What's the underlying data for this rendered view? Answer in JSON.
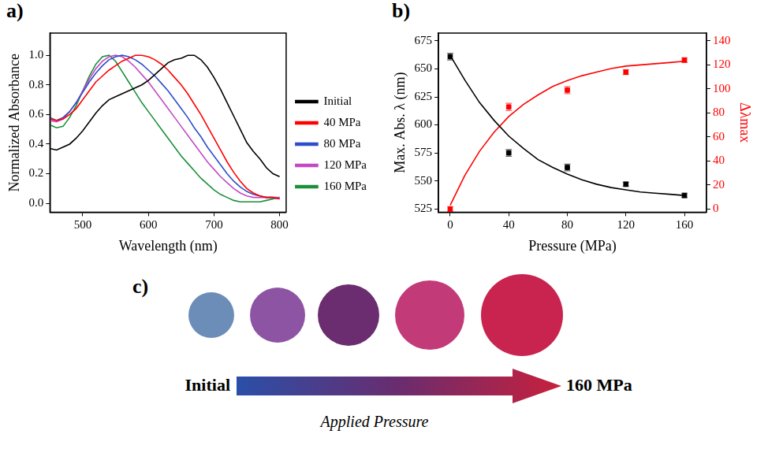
{
  "chart_data": [
    {
      "panel": "a)",
      "type": "line",
      "x_label": "Wavelength (nm)",
      "y_label": "Normalized Absorbance",
      "x": [
        450,
        460,
        470,
        480,
        490,
        500,
        510,
        520,
        530,
        540,
        550,
        560,
        570,
        580,
        590,
        600,
        610,
        620,
        630,
        640,
        650,
        660,
        670,
        680,
        690,
        700,
        710,
        720,
        730,
        740,
        750,
        760,
        770,
        780,
        790,
        800
      ],
      "series": [
        {
          "name": "Initial",
          "color": "#000000",
          "values": [
            0.37,
            0.36,
            0.38,
            0.4,
            0.44,
            0.49,
            0.55,
            0.61,
            0.66,
            0.7,
            0.72,
            0.74,
            0.76,
            0.78,
            0.8,
            0.83,
            0.87,
            0.91,
            0.95,
            0.97,
            0.98,
            1.0,
            1.0,
            0.97,
            0.92,
            0.85,
            0.77,
            0.68,
            0.59,
            0.5,
            0.41,
            0.35,
            0.3,
            0.24,
            0.2,
            0.18
          ]
        },
        {
          "name": "40 MPa",
          "color": "#ff0000",
          "values": [
            0.57,
            0.56,
            0.57,
            0.6,
            0.64,
            0.7,
            0.76,
            0.82,
            0.86,
            0.9,
            0.93,
            0.96,
            0.98,
            1.0,
            1.0,
            0.99,
            0.97,
            0.94,
            0.9,
            0.85,
            0.8,
            0.74,
            0.67,
            0.6,
            0.52,
            0.44,
            0.36,
            0.28,
            0.21,
            0.15,
            0.1,
            0.07,
            0.05,
            0.04,
            0.04,
            0.03
          ]
        },
        {
          "name": "80 MPa",
          "color": "#2e4ecb",
          "values": [
            0.58,
            0.56,
            0.58,
            0.62,
            0.68,
            0.75,
            0.82,
            0.88,
            0.93,
            0.97,
            0.99,
            1.0,
            0.99,
            0.97,
            0.94,
            0.9,
            0.86,
            0.81,
            0.76,
            0.7,
            0.64,
            0.58,
            0.51,
            0.45,
            0.38,
            0.32,
            0.26,
            0.2,
            0.15,
            0.11,
            0.08,
            0.06,
            0.05,
            0.04,
            0.04,
            0.03
          ]
        },
        {
          "name": "120 MPa",
          "color": "#c24bc4",
          "values": [
            0.56,
            0.55,
            0.57,
            0.62,
            0.68,
            0.76,
            0.84,
            0.91,
            0.96,
            0.99,
            1.0,
            0.99,
            0.96,
            0.92,
            0.87,
            0.82,
            0.76,
            0.7,
            0.64,
            0.58,
            0.52,
            0.46,
            0.4,
            0.34,
            0.28,
            0.23,
            0.18,
            0.14,
            0.1,
            0.07,
            0.05,
            0.04,
            0.04,
            0.04,
            0.04,
            0.04
          ]
        },
        {
          "name": "160 MPa",
          "color": "#1b8f3a",
          "values": [
            0.53,
            0.51,
            0.52,
            0.58,
            0.66,
            0.76,
            0.86,
            0.94,
            0.99,
            1.0,
            0.96,
            0.89,
            0.82,
            0.75,
            0.68,
            0.62,
            0.56,
            0.5,
            0.44,
            0.38,
            0.32,
            0.27,
            0.22,
            0.17,
            0.13,
            0.09,
            0.06,
            0.04,
            0.02,
            0.01,
            0.01,
            0.01,
            0.01,
            0.02,
            0.03,
            0.04
          ]
        }
      ],
      "xlim": [
        450,
        810
      ],
      "xticks": [
        500,
        600,
        700,
        800
      ],
      "ylim": [
        -0.06,
        1.15
      ],
      "yticks": [
        {
          "value": 0,
          "label": "0.0"
        },
        0.2,
        0.4,
        0.6,
        0.8,
        {
          "value": 1,
          "label": "1.0"
        }
      ],
      "grid": false,
      "legend": "right"
    },
    {
      "panel": "b)",
      "type": "scatter",
      "x_label": "Pressure (MPa)",
      "y_label": "Max. Abs. λ (nm)",
      "y2_label": "Δλmax",
      "series": [
        {
          "type": "scatter",
          "marker": "square",
          "color": "#000000",
          "x": [
            0,
            40,
            80,
            120,
            160
          ],
          "values": [
            661,
            575,
            562,
            547,
            537
          ],
          "errors": [
            3,
            3,
            3,
            2,
            2
          ]
        },
        {
          "type": "scatter",
          "marker": "square",
          "color": "#ff0000",
          "axis": "y2",
          "x": [
            0,
            40,
            80,
            120,
            160
          ],
          "values": [
            0,
            85,
            99,
            114,
            124
          ],
          "errors": [
            2,
            3,
            3,
            2,
            2
          ]
        },
        {
          "type": "line",
          "line_style": "solid",
          "color": "#000000",
          "x": [
            0,
            10,
            20,
            30,
            40,
            50,
            60,
            70,
            80,
            90,
            100,
            110,
            120,
            130,
            140,
            150,
            160
          ],
          "values": [
            662,
            640,
            620,
            604,
            590,
            579,
            569,
            562,
            556,
            551,
            547,
            544,
            542,
            540,
            539,
            538,
            537
          ]
        },
        {
          "type": "line",
          "line_style": "solid",
          "color": "#ff0000",
          "axis": "y2",
          "x": [
            0,
            10,
            20,
            30,
            40,
            50,
            60,
            70,
            80,
            90,
            100,
            110,
            120,
            130,
            140,
            150,
            160
          ],
          "values": [
            3,
            28,
            48,
            64,
            77,
            87,
            95,
            102,
            107,
            111,
            114,
            117,
            119,
            120,
            121,
            122,
            123
          ]
        }
      ],
      "xlim": [
        -8,
        175
      ],
      "xticks": [
        0,
        40,
        80,
        120,
        160
      ],
      "ylim": [
        522,
        682
      ],
      "yticks": [
        525,
        550,
        575,
        600,
        625,
        650,
        675
      ],
      "y2lim": [
        -2.7,
        146.5
      ],
      "y2ticks": [
        0,
        20,
        40,
        60,
        80,
        100,
        120,
        140
      ],
      "grid": false
    }
  ],
  "panel_c": {
    "panel": "c)",
    "colors": [
      "#6b8db8",
      "#8e54a4",
      "#6b2d6f",
      "#c23a78",
      "#c8244f"
    ],
    "arrow_start_label": "Initial",
    "arrow_end_label": "160 MPa",
    "caption": "Applied Pressure"
  }
}
